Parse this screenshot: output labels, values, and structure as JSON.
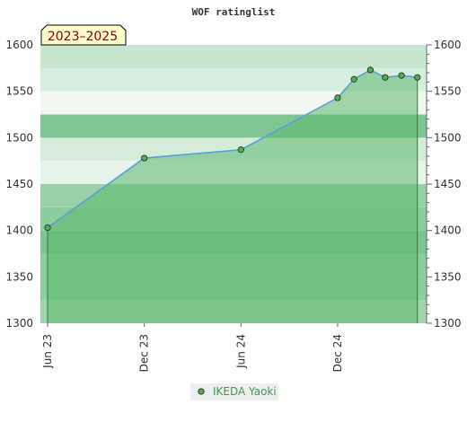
{
  "chart_data": {
    "type": "area",
    "title": "WOF ratinglist",
    "period_badge": "2023–2025",
    "xlabel": "",
    "ylabel": "",
    "ylim": [
      1300,
      1600
    ],
    "y_ticks": [
      1300,
      1350,
      1400,
      1450,
      1500,
      1550,
      1600
    ],
    "x_range": [
      "2023-06-01",
      "2025-06-01"
    ],
    "x_ticks": [
      {
        "date": "2023-06-01",
        "label": "Jun 23"
      },
      {
        "date": "2023-12-01",
        "label": "Dec 23"
      },
      {
        "date": "2024-06-01",
        "label": "Jun 24"
      },
      {
        "date": "2024-12-01",
        "label": "Dec 24"
      }
    ],
    "series": [
      {
        "name": "IKEDA Yaoki",
        "color": "#5aa0d8",
        "fill": "#5cb86e",
        "marker_color": "#4caf50",
        "points": [
          {
            "date": "2023-06-01",
            "value": 1403
          },
          {
            "date": "2023-12-01",
            "value": 1478
          },
          {
            "date": "2024-06-01",
            "value": 1487
          },
          {
            "date": "2024-12-01",
            "value": 1543
          },
          {
            "date": "2025-01-01",
            "value": 1563
          },
          {
            "date": "2025-02-01",
            "value": 1573
          },
          {
            "date": "2025-03-01",
            "value": 1565
          },
          {
            "date": "2025-04-01",
            "value": 1567
          },
          {
            "date": "2025-05-01",
            "value": 1565
          }
        ]
      }
    ],
    "grid": true,
    "legend": "bottom"
  }
}
